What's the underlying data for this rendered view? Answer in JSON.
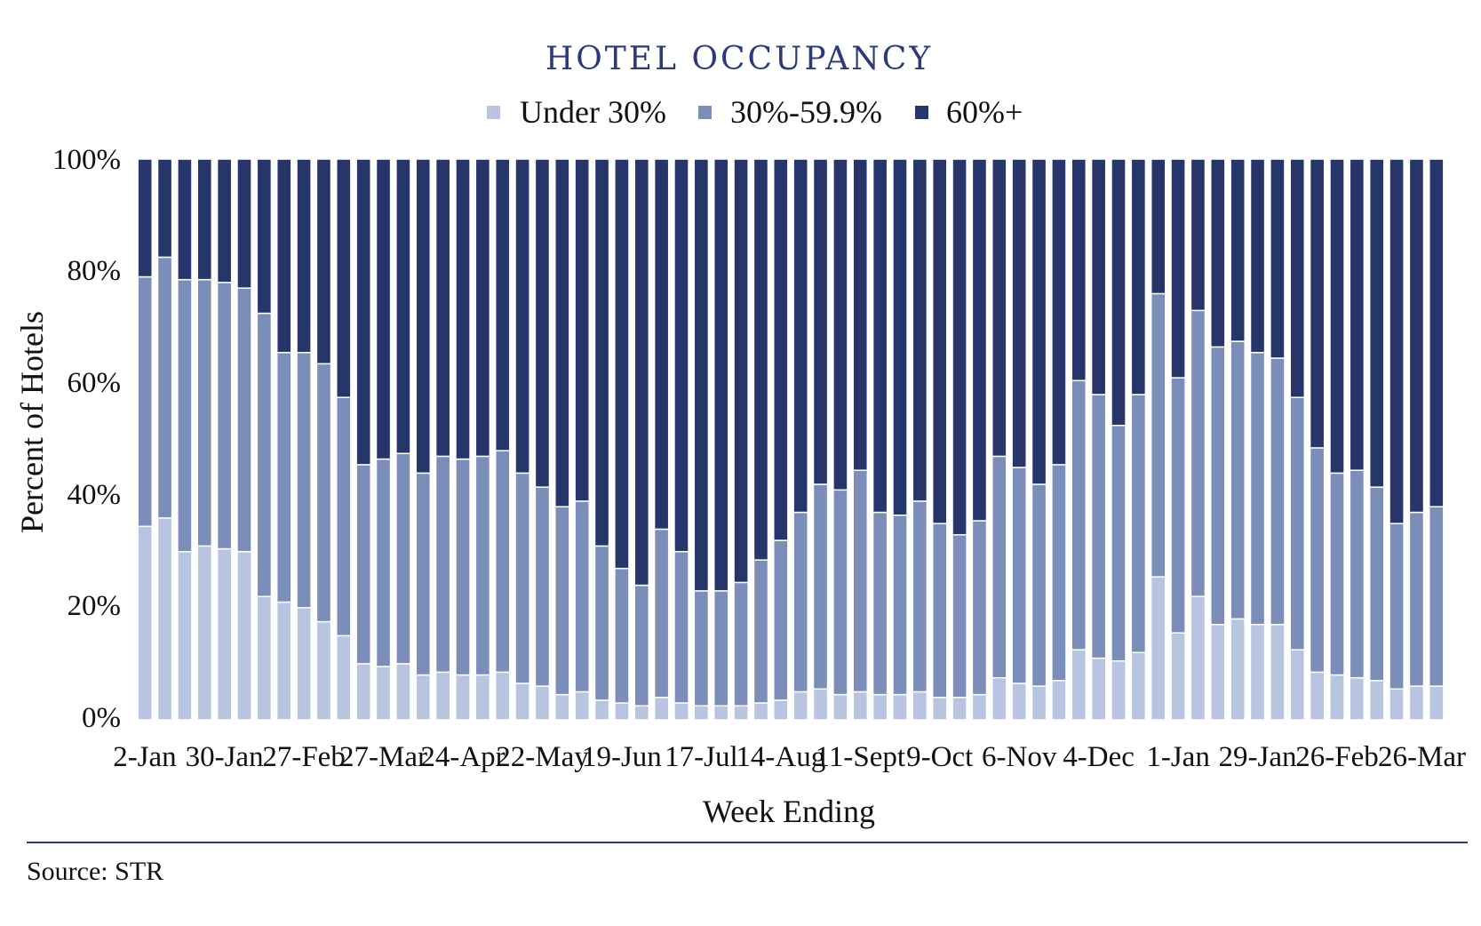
{
  "chart_data": {
    "type": "bar",
    "stacked": true,
    "percent_stacked": true,
    "title": "HOTEL OCCUPANCY",
    "xlabel": "Week Ending",
    "ylabel": "Percent of Hotels",
    "ylim": [
      0,
      100
    ],
    "y_ticks": [
      "0%",
      "20%",
      "40%",
      "60%",
      "80%",
      "100%"
    ],
    "x_tick_labels": [
      "2-Jan",
      "30-Jan",
      "27-Feb",
      "27-Mar",
      "24-Apr",
      "22-May",
      "19-Jun",
      "17-Jul",
      "14-Aug",
      "11-Sept",
      "9-Oct",
      "6-Nov",
      "4-Dec",
      "1-Jan",
      "29-Jan",
      "26-Feb",
      "26-Mar"
    ],
    "legend_placement": "top-center",
    "grid": false,
    "source": "Source: STR",
    "colors": {
      "under30": "#b8c4e0",
      "mid": "#7b8db9",
      "over60": "#26366b",
      "title": "#2a3a7a",
      "rule": "#2a3a7a"
    },
    "series": [
      {
        "name": "Under 30%",
        "values": [
          34.5,
          36.0,
          30.0,
          31.0,
          30.5,
          30.0,
          22.0,
          21.0,
          20.0,
          17.5,
          15.0,
          10.0,
          9.5,
          10.0,
          8.0,
          8.5,
          8.0,
          8.0,
          8.5,
          6.5,
          6.0,
          4.5,
          5.0,
          3.5,
          3.0,
          2.5,
          4.0,
          3.0,
          2.5,
          2.5,
          2.5,
          3.0,
          3.5,
          5.0,
          5.5,
          4.5,
          5.0,
          4.5,
          4.5,
          5.0,
          4.0,
          4.0,
          4.5,
          7.5,
          6.5,
          6.0,
          7.0,
          12.5,
          11.0,
          10.5,
          12.0,
          25.5,
          15.5,
          22.0,
          17.0,
          18.0,
          17.0,
          17.0,
          12.5,
          8.5,
          8.0,
          7.5,
          7.0,
          5.5,
          6.0,
          6.0
        ],
        "color": "#b8c4e0"
      },
      {
        "name": "30%-59.9%",
        "values": [
          44.5,
          46.5,
          48.5,
          47.5,
          47.5,
          47.0,
          50.5,
          44.5,
          45.5,
          46.0,
          42.5,
          35.5,
          37.0,
          37.5,
          36.0,
          38.5,
          38.5,
          39.0,
          39.5,
          37.5,
          35.5,
          33.5,
          34.0,
          27.5,
          24.0,
          21.5,
          30.0,
          27.0,
          20.5,
          20.5,
          22.0,
          25.5,
          28.5,
          32.0,
          36.5,
          36.5,
          39.5,
          32.5,
          32.0,
          34.0,
          31.0,
          29.0,
          31.0,
          39.5,
          38.5,
          36.0,
          38.5,
          48.0,
          47.0,
          42.0,
          46.0,
          50.5,
          45.5,
          51.0,
          49.5,
          49.5,
          48.5,
          47.5,
          45.0,
          40.0,
          36.0,
          37.0,
          34.5,
          29.5,
          31.0,
          32.0
        ],
        "color": "#7b8db9"
      },
      {
        "name": "60%+",
        "values": [
          21.0,
          17.5,
          21.5,
          21.5,
          22.0,
          23.0,
          27.5,
          34.5,
          34.5,
          36.5,
          42.5,
          54.5,
          53.5,
          52.5,
          56.0,
          53.0,
          53.5,
          53.0,
          52.0,
          56.0,
          58.5,
          62.0,
          61.0,
          69.0,
          73.0,
          76.0,
          66.0,
          70.0,
          77.0,
          77.0,
          75.5,
          71.5,
          68.0,
          63.0,
          58.0,
          59.0,
          55.5,
          63.0,
          63.5,
          61.0,
          65.0,
          67.0,
          64.5,
          53.0,
          55.0,
          58.0,
          54.5,
          39.5,
          42.0,
          47.5,
          42.0,
          24.0,
          39.0,
          27.0,
          33.5,
          32.5,
          34.5,
          35.5,
          42.5,
          51.5,
          56.0,
          55.5,
          58.5,
          65.0,
          63.0,
          62.0
        ],
        "color": "#26366b"
      }
    ]
  }
}
